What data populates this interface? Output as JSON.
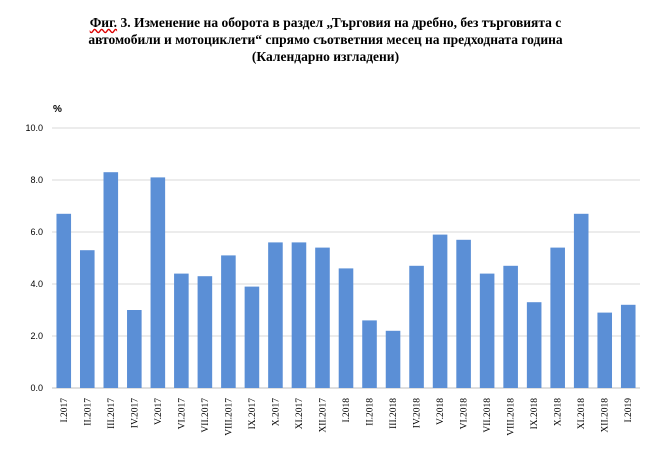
{
  "title": {
    "line1_prefix": "Фиг.",
    "line1_rest": " 3. Изменение на оборота в раздел „Търговия на дребно, без търговията с",
    "line2": "автомобили и мотоциклети“ спрямо съответния месец на предходната година",
    "line3": "(Календарно изгладени)"
  },
  "chart_data": {
    "type": "bar",
    "ylabel": "%",
    "ylim": [
      0,
      10
    ],
    "yticks": [
      "0.0",
      "2.0",
      "4.0",
      "6.0",
      "8.0",
      "10.0"
    ],
    "grid": true,
    "bar_color": "#5b8fd6",
    "categories": [
      "I.2017",
      "II.2017",
      "III.2017",
      "IV.2017",
      "V.2017",
      "VI.2017",
      "VII.2017",
      "VIII.2017",
      "IX.2017",
      "X.2017",
      "XI.2017",
      "XII.2017",
      "I.2018",
      "II.2018",
      "III.2018",
      "IV.2018",
      "V.2018",
      "VI.2018",
      "VII.2018",
      "VIII.2018",
      "IX.2018",
      "X.2018",
      "XI.2018",
      "XII.2018",
      "I.2019"
    ],
    "values": [
      6.7,
      5.3,
      8.3,
      3.0,
      8.1,
      4.4,
      4.3,
      5.1,
      3.9,
      5.6,
      5.6,
      5.4,
      4.6,
      2.6,
      2.2,
      4.7,
      5.9,
      5.7,
      4.4,
      4.7,
      3.3,
      5.4,
      6.7,
      2.9,
      3.2
    ]
  }
}
